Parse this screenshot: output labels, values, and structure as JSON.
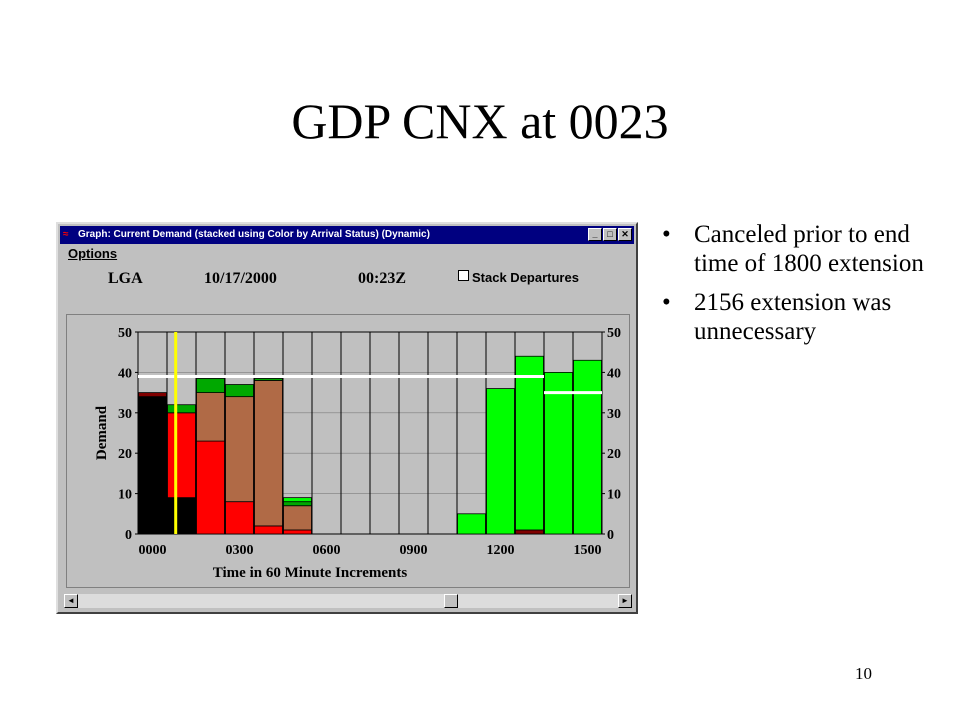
{
  "slide": {
    "title": "GDP CNX at 0023",
    "bullets": [
      "Canceled prior to end time of 1800 extension",
      "2156 extension was unnecessary"
    ],
    "page_number": "10"
  },
  "window": {
    "title": "Graph: Current Demand (stacked using Color by Arrival Status) (Dynamic)",
    "menu_options": "Options",
    "airport": "LGA",
    "date": "10/17/2000",
    "time": "00:23Z",
    "stack_departures_label": "Stack Departures",
    "stack_departures_checked": false,
    "title_buttons": [
      "_",
      "□",
      "✕"
    ],
    "scroll_left_icon": "◄",
    "scroll_right_icon": "►"
  },
  "chart_data": {
    "type": "bar",
    "stacked": true,
    "ylabel": "Demand",
    "xlabel": "Time in 60 Minute Increments",
    "ylim": [
      0,
      50
    ],
    "y_ticks": [
      "0",
      "10",
      "20",
      "30",
      "40",
      "50"
    ],
    "x_tick_labels": [
      "0000",
      "0300",
      "0600",
      "0900",
      "1200",
      "1500"
    ],
    "x_tick_positions": [
      0.5,
      3.5,
      6.5,
      9.5,
      12.5,
      15.5
    ],
    "grid": true,
    "colors": {
      "black": "#000000",
      "red": "#ff0000",
      "brown": "#b06a46",
      "dark_green": "#00a800",
      "bright_green": "#00ff00",
      "cap_red": "#800000",
      "white_line": "#ffffff",
      "yellow_line": "#ffff00"
    },
    "bars": [
      [
        {
          "c": "black",
          "v": 34
        },
        {
          "c": "cap_red",
          "v": 1
        }
      ],
      [
        {
          "c": "black",
          "v": 9
        },
        {
          "c": "red",
          "v": 21
        },
        {
          "c": "dark_green",
          "v": 2
        }
      ],
      [
        {
          "c": "red",
          "v": 23
        },
        {
          "c": "brown",
          "v": 12
        },
        {
          "c": "dark_green",
          "v": 3.5
        }
      ],
      [
        {
          "c": "red",
          "v": 8
        },
        {
          "c": "brown",
          "v": 26
        },
        {
          "c": "dark_green",
          "v": 3
        }
      ],
      [
        {
          "c": "red",
          "v": 2
        },
        {
          "c": "brown",
          "v": 36
        },
        {
          "c": "dark_green",
          "v": 0.5
        }
      ],
      [
        {
          "c": "red",
          "v": 1
        },
        {
          "c": "brown",
          "v": 6
        },
        {
          "c": "dark_green",
          "v": 1
        },
        {
          "c": "bright_green",
          "v": 1
        }
      ],
      [],
      [],
      [],
      [],
      [],
      [
        {
          "c": "bright_green",
          "v": 5
        }
      ],
      [
        {
          "c": "bright_green",
          "v": 36
        }
      ],
      [
        {
          "c": "cap_red",
          "v": 1
        },
        {
          "c": "bright_green",
          "v": 43
        }
      ],
      [
        {
          "c": "bright_green",
          "v": 40
        }
      ],
      [
        {
          "c": "bright_green",
          "v": 43
        }
      ]
    ],
    "aar_lines": [
      {
        "x0": 0,
        "x1": 13,
        "y": 39
      },
      {
        "x0": 13,
        "x1": 14,
        "y": 39
      },
      {
        "x0": 14,
        "x1": 16,
        "y": 35
      }
    ],
    "now_marker_x": 1.3
  }
}
